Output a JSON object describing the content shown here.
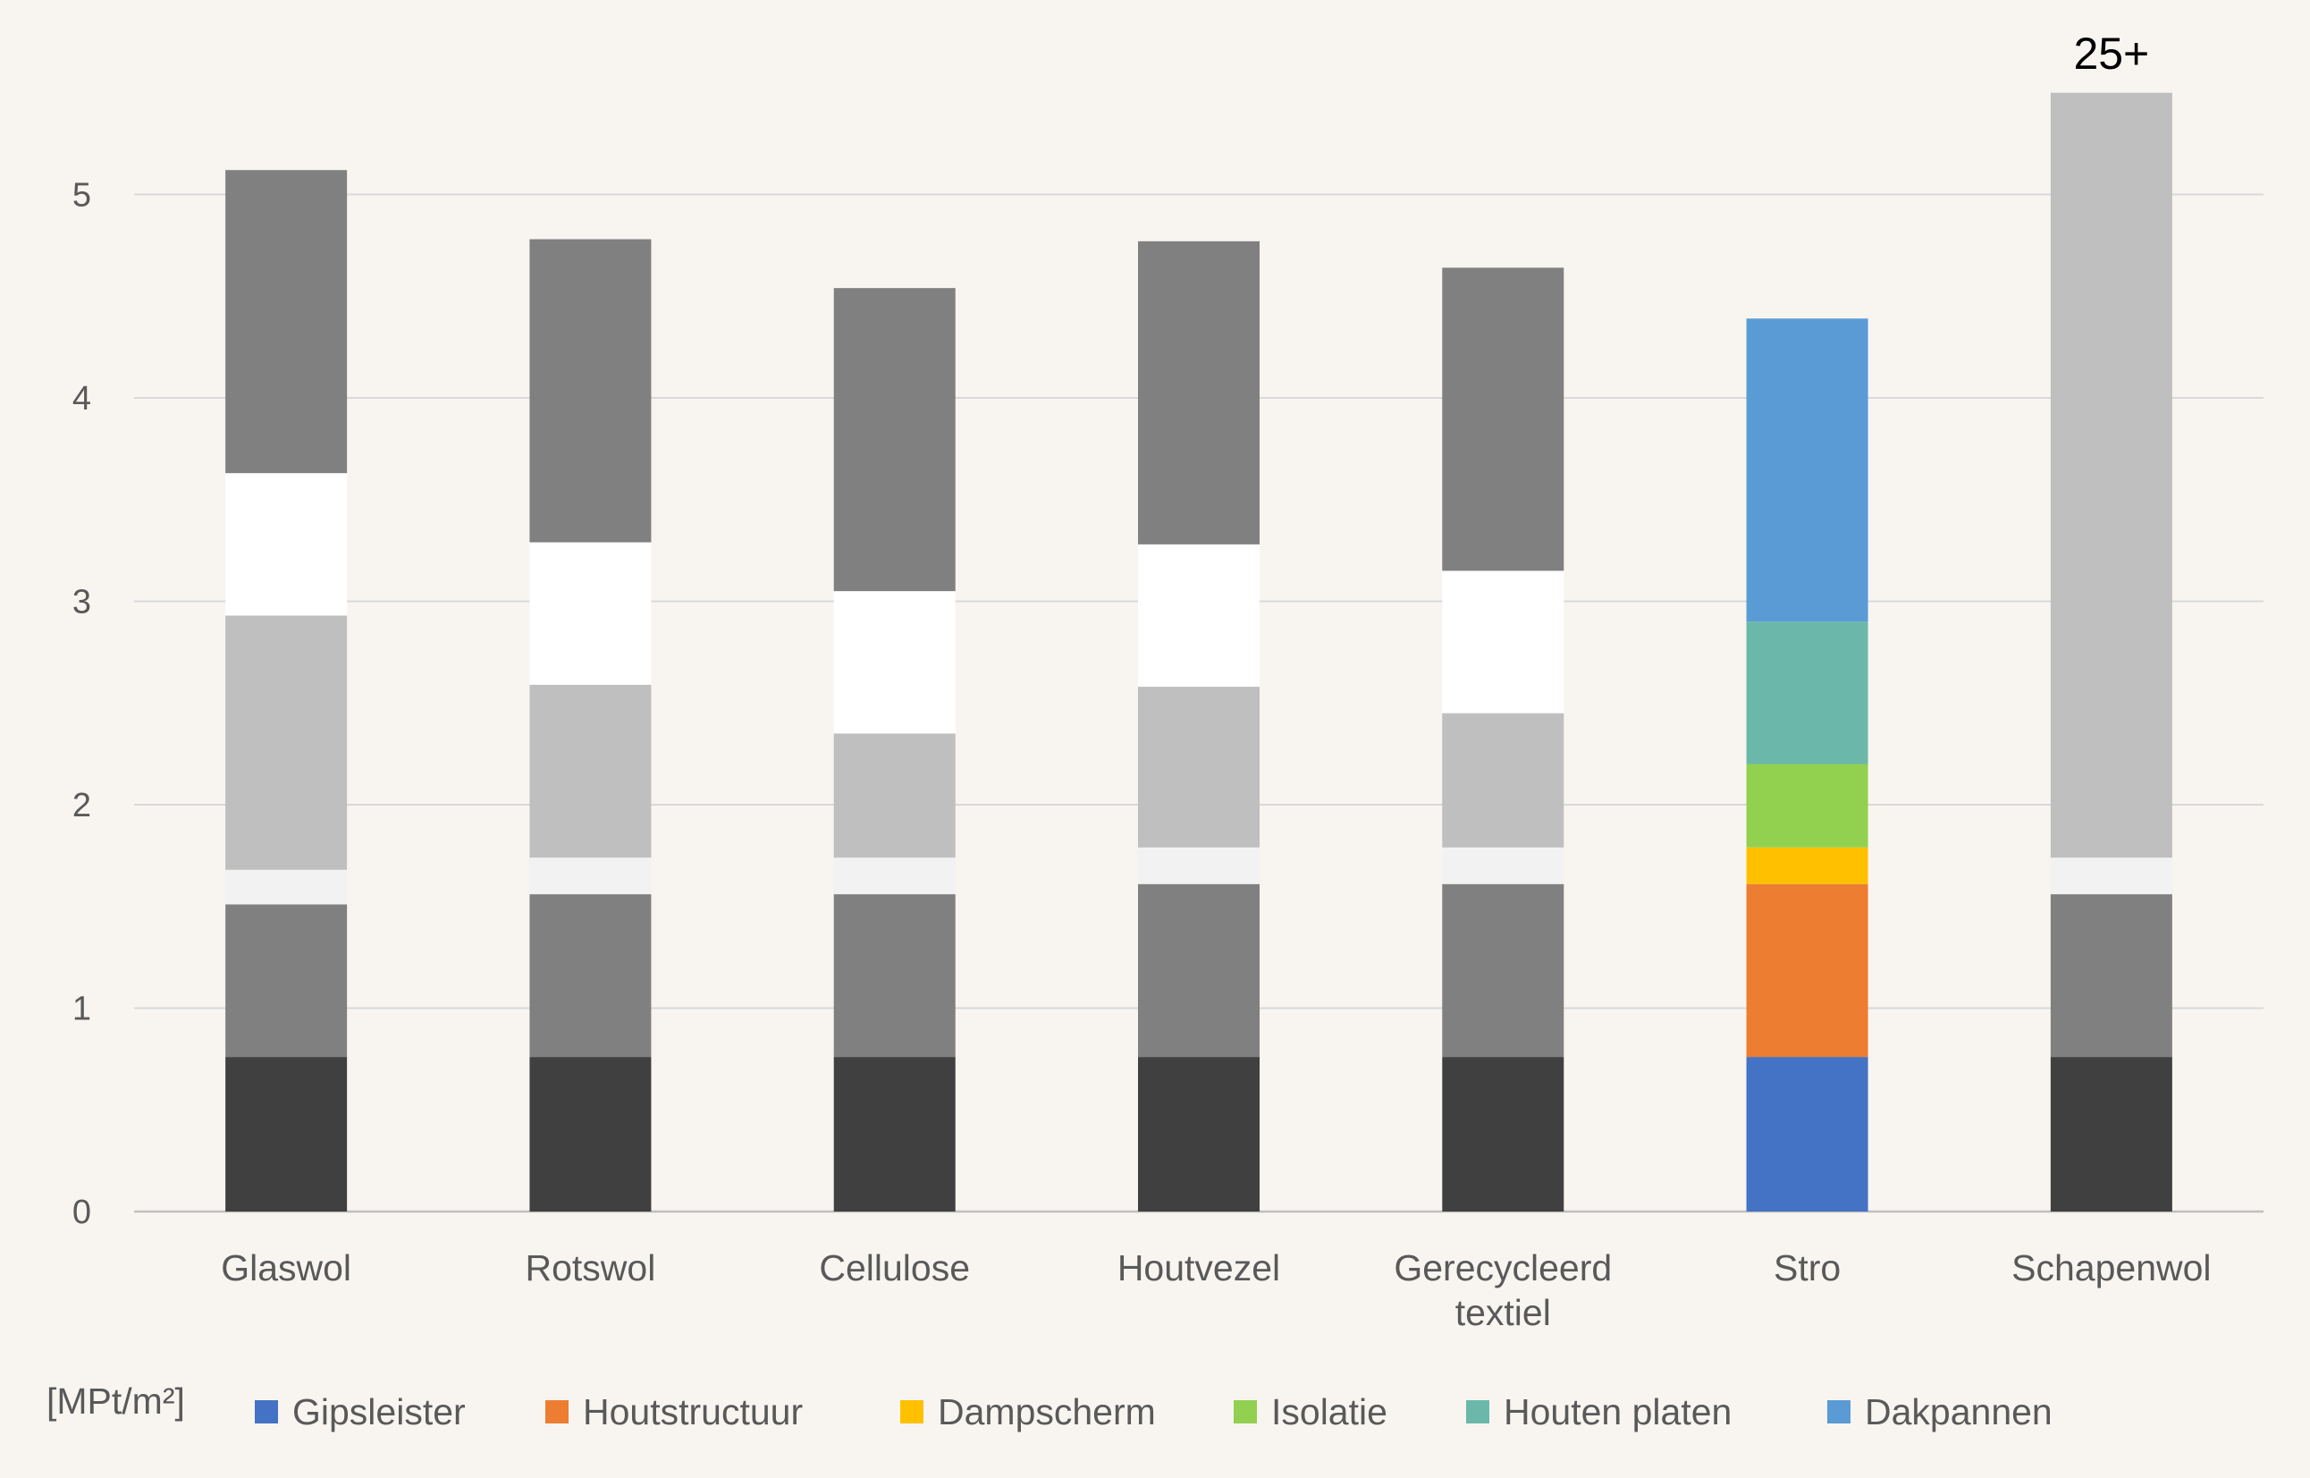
{
  "chart_data": {
    "type": "bar",
    "stacked": true,
    "unit_label": "[MPt/m²]",
    "categories": [
      [
        "Glaswol"
      ],
      [
        "Rotswol"
      ],
      [
        "Cellulose"
      ],
      [
        "Houtvezel"
      ],
      [
        "Gerecycleerd",
        "textiel"
      ],
      [
        "Stro"
      ],
      [
        "Schapenwol"
      ]
    ],
    "ylim": [
      0,
      5.5
    ],
    "yticks": [
      0,
      1,
      2,
      3,
      4,
      5
    ],
    "grid": true,
    "legend_position": "bottom",
    "series": [
      {
        "name": "Gipsleister",
        "color": "#4472c4",
        "values": [
          0.76,
          0.76,
          0.76,
          0.76,
          0.76,
          0.76,
          0.76
        ]
      },
      {
        "name": "Houtstructuur",
        "color": "#ed7d31",
        "values": [
          0.75,
          0.8,
          0.8,
          0.85,
          0.85,
          0.85,
          0.8
        ]
      },
      {
        "name": "Dampscherm",
        "color": "#ffc000",
        "values": [
          0.17,
          0.18,
          0.18,
          0.18,
          0.18,
          0.18,
          0.18
        ]
      },
      {
        "name": "Isolatie",
        "color": "#92d050",
        "values": [
          1.25,
          0.85,
          0.61,
          0.79,
          0.66,
          0.41,
          3.76
        ]
      },
      {
        "name": "Houten platen",
        "color": "#6bb8aa",
        "values": [
          0.7,
          0.7,
          0.7,
          0.7,
          0.7,
          0.7,
          0.0
        ]
      },
      {
        "name": "Dakpannen",
        "color": "#5b9bd5",
        "values": [
          1.49,
          1.49,
          1.49,
          1.49,
          1.49,
          1.49,
          0.0
        ]
      }
    ],
    "grey_colors": [
      "#404040",
      "#808080",
      "#f2f2f2",
      "#bfbfbf",
      "#ffffff",
      "#808080"
    ],
    "colored_category_index": 5,
    "annotations": [
      {
        "category_index": 6,
        "text": "25+"
      }
    ]
  }
}
